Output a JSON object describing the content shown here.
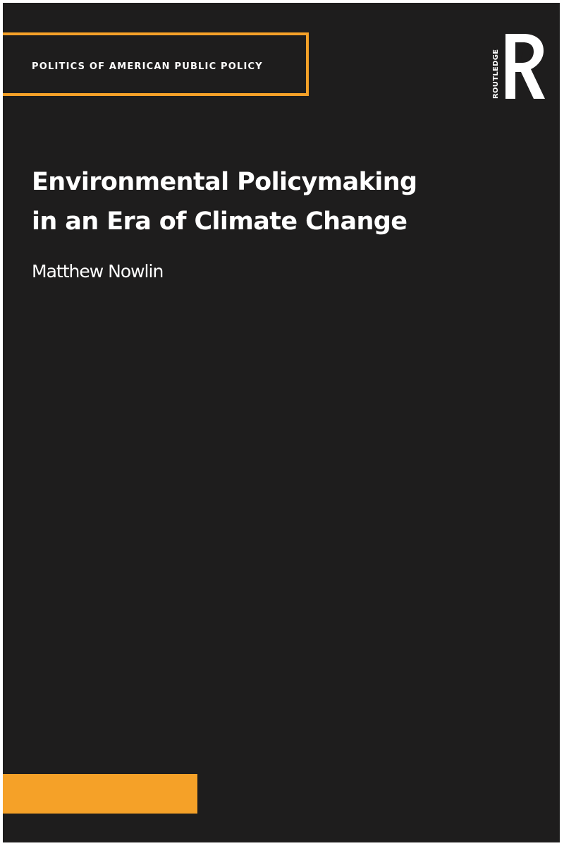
{
  "cover": {
    "series": "POLITICS OF AMERICAN PUBLIC POLICY",
    "title_line1": "Environmental Policymaking",
    "title_line2": "in an Era of Climate Change",
    "author": "Matthew Nowlin",
    "publisher": "ROUTLEDGE"
  },
  "colors": {
    "background": "#1e1d1d",
    "accent": "#f5a128",
    "text": "#ffffff"
  },
  "icons": {
    "publisher_logo": "routledge-r-logo-icon"
  }
}
